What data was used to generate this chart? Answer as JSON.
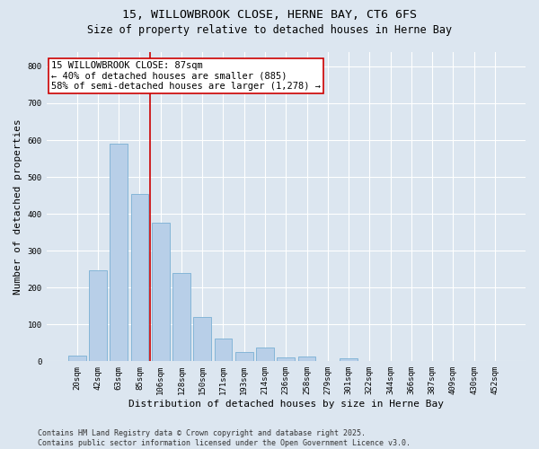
{
  "title_line1": "15, WILLOWBROOK CLOSE, HERNE BAY, CT6 6FS",
  "title_line2": "Size of property relative to detached houses in Herne Bay",
  "xlabel": "Distribution of detached houses by size in Herne Bay",
  "ylabel": "Number of detached properties",
  "bar_labels": [
    "20sqm",
    "42sqm",
    "63sqm",
    "85sqm",
    "106sqm",
    "128sqm",
    "150sqm",
    "171sqm",
    "193sqm",
    "214sqm",
    "236sqm",
    "258sqm",
    "279sqm",
    "301sqm",
    "322sqm",
    "344sqm",
    "366sqm",
    "387sqm",
    "409sqm",
    "430sqm",
    "452sqm"
  ],
  "bar_values": [
    15,
    248,
    590,
    455,
    375,
    240,
    120,
    62,
    25,
    37,
    10,
    12,
    0,
    8,
    0,
    0,
    0,
    0,
    0,
    0,
    0
  ],
  "bar_color": "#b8cfe8",
  "bar_edge_color": "#7aafd4",
  "vline_color": "#cc0000",
  "annotation_text": "15 WILLOWBROOK CLOSE: 87sqm\n← 40% of detached houses are smaller (885)\n58% of semi-detached houses are larger (1,278) →",
  "annotation_box_color": "#ffffff",
  "annotation_box_edge": "#cc0000",
  "ylim": [
    0,
    840
  ],
  "yticks": [
    0,
    100,
    200,
    300,
    400,
    500,
    600,
    700,
    800
  ],
  "background_color": "#dce6f0",
  "plot_bg_color": "#dce6f0",
  "footer_text": "Contains HM Land Registry data © Crown copyright and database right 2025.\nContains public sector information licensed under the Open Government Licence v3.0.",
  "title_fontsize": 9.5,
  "subtitle_fontsize": 8.5,
  "axis_label_fontsize": 8,
  "tick_fontsize": 6.5,
  "annotation_fontsize": 7.5,
  "footer_fontsize": 6
}
